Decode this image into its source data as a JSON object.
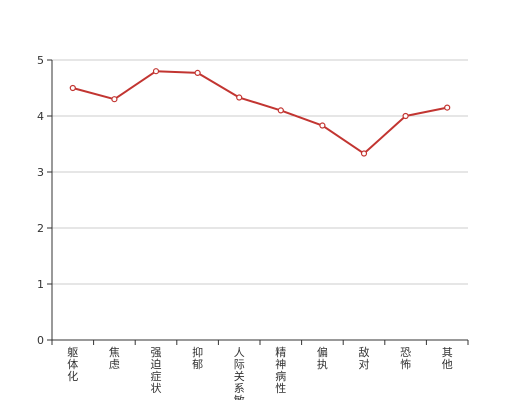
{
  "chart_data": {
    "type": "line",
    "categories": [
      "躯体化",
      "焦虑",
      "强迫症状",
      "抑郁",
      "人际关系敏感",
      "精神病性",
      "偏执",
      "敌对",
      "恐怖",
      "其他"
    ],
    "values": [
      4.5,
      4.3,
      4.8,
      4.77,
      4.33,
      4.1,
      3.83,
      3.33,
      4.0,
      4.15
    ],
    "ylim": [
      0,
      5
    ],
    "yticks": [
      0,
      1,
      2,
      3,
      4,
      5
    ],
    "grid": true,
    "legend": "none",
    "title": "",
    "xlabel": "",
    "ylabel": ""
  },
  "colors": {
    "line": "#c23531",
    "grid": "#cccccc",
    "axis": "#333333",
    "text": "#333333",
    "marker_fill": "#ffffff"
  }
}
